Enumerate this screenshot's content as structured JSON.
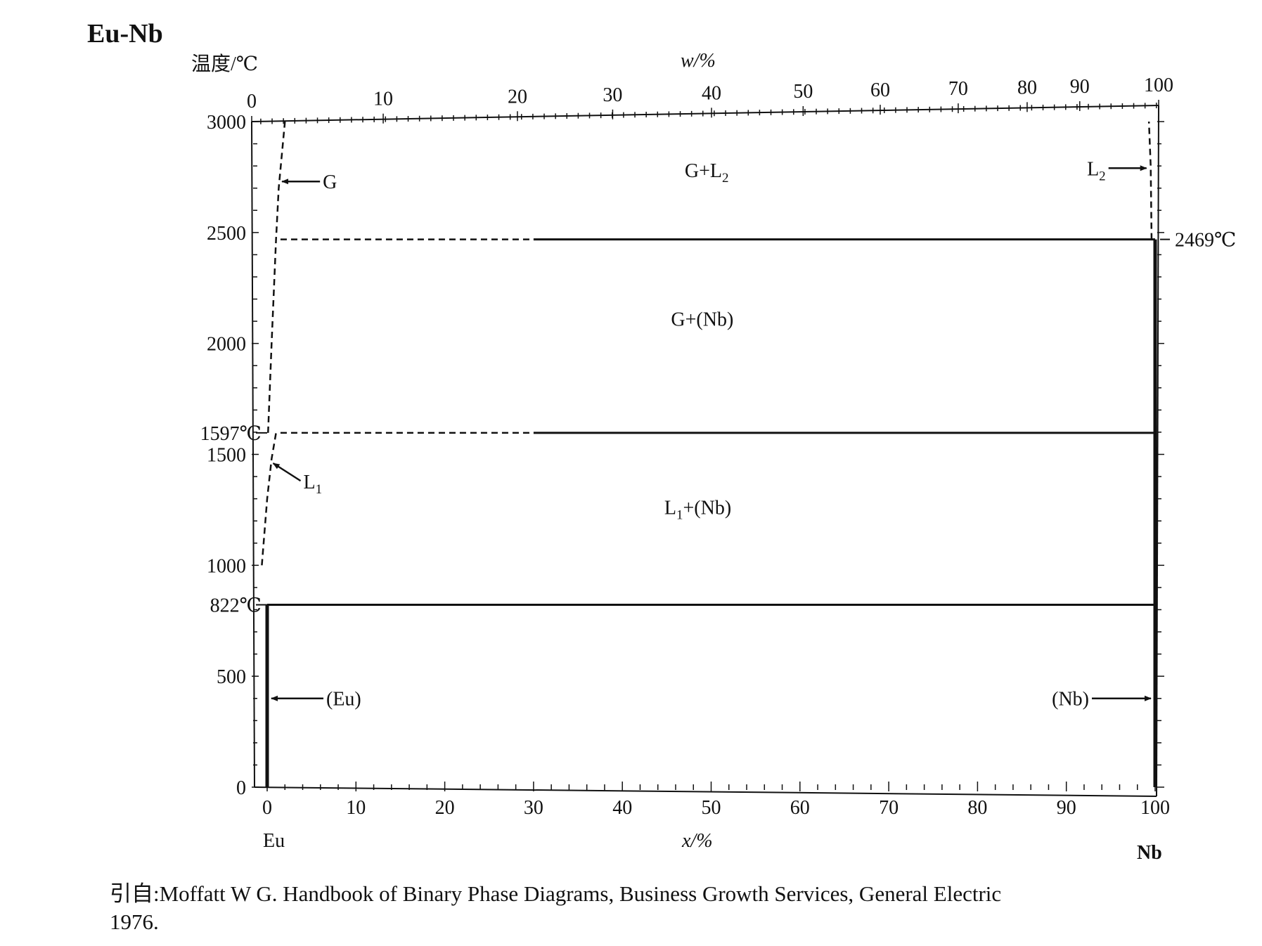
{
  "title": "Eu-Nb",
  "chart_data": {
    "type": "phase-diagram",
    "system": "Eu-Nb",
    "ylabel": "温度/℃",
    "xlabel_bottom": "x/%",
    "xlabel_top": "w/%",
    "ylim": [
      0,
      3000
    ],
    "xlim": [
      0,
      100
    ],
    "y_ticks": [
      "0",
      "500",
      "1000",
      "1500",
      "2000",
      "2500",
      "3000"
    ],
    "x_bottom_ticks": [
      "0",
      "10",
      "20",
      "30",
      "40",
      "50",
      "60",
      "70",
      "80",
      "90",
      "100"
    ],
    "x_top_ticks": [
      "0",
      "10",
      "20",
      "30",
      "40",
      "50",
      "60",
      "70",
      "80",
      "90",
      "100"
    ],
    "x_top_tick_at_atomic": [
      0,
      14.5,
      29.3,
      39.8,
      50.7,
      60.8,
      69.3,
      77.9,
      85.5,
      91.3,
      100
    ],
    "components": {
      "left": "Eu",
      "right": "Nb"
    },
    "special_temperatures": [
      {
        "label": "822℃",
        "value": 822
      },
      {
        "label": "1597℃",
        "value": 1597
      },
      {
        "label": "2469℃",
        "value": 2469
      }
    ],
    "horizontal_lines": [
      {
        "t": 822,
        "x_from": 0,
        "x_to": 100,
        "style": "solid"
      },
      {
        "t": 1597,
        "x_from": 1.5,
        "x_to": 100,
        "style": "solid-dashed-left"
      },
      {
        "t": 2469,
        "x_from": 1.5,
        "x_to": 100,
        "style": "solid-dashed-left"
      }
    ],
    "boundary_curves": [
      {
        "name": "G boundary",
        "style": "dashed",
        "points": [
          [
            0.1,
            1597
          ],
          [
            0.5,
            2000
          ],
          [
            1.0,
            2469
          ],
          [
            1.3,
            2700
          ],
          [
            2.0,
            3000
          ]
        ]
      },
      {
        "name": "L1 boundary",
        "style": "dashed",
        "points": [
          [
            -0.6,
            1000
          ],
          [
            0.0,
            1300
          ],
          [
            0.5,
            1480
          ],
          [
            1.0,
            1597
          ]
        ]
      },
      {
        "name": "L2 boundary",
        "style": "dashed",
        "points": [
          [
            99.6,
            2469
          ],
          [
            99.5,
            2800
          ],
          [
            99.3,
            3000
          ]
        ]
      },
      {
        "name": "(Eu) solvus",
        "style": "solid",
        "points": [
          [
            0,
            0
          ],
          [
            0,
            822
          ]
        ]
      },
      {
        "name": "(Nb) solvus",
        "style": "solid",
        "points": [
          [
            100,
            0
          ],
          [
            100,
            2469
          ]
        ]
      }
    ],
    "phase_regions": [
      {
        "label": "G+L",
        "sub": "2",
        "at": [
          49.5,
          2750
        ]
      },
      {
        "label": "G+(Nb)",
        "sub": "",
        "at": [
          49.0,
          2080
        ]
      },
      {
        "label": "L",
        "sub": "1",
        "tail": "+(Nb)",
        "at": [
          48.5,
          1230
        ]
      }
    ],
    "annotations": [
      {
        "label": "G",
        "sub": "",
        "points_to": [
          1.2,
          2730
        ]
      },
      {
        "label": "L",
        "sub": "1",
        "points_to": [
          0.2,
          1460
        ]
      },
      {
        "label": "L",
        "sub": "2",
        "points_to": [
          99.5,
          2790
        ]
      },
      {
        "label": "(Eu)",
        "sub": "",
        "points_to": [
          0,
          400
        ]
      },
      {
        "label": "(Nb)",
        "sub": "",
        "points_to": [
          100,
          400
        ]
      }
    ]
  },
  "caption": {
    "line1": "引自:Moffatt W G. Handbook of Binary Phase Diagrams, Business Growth Services, General Electric",
    "line2": "1976."
  }
}
